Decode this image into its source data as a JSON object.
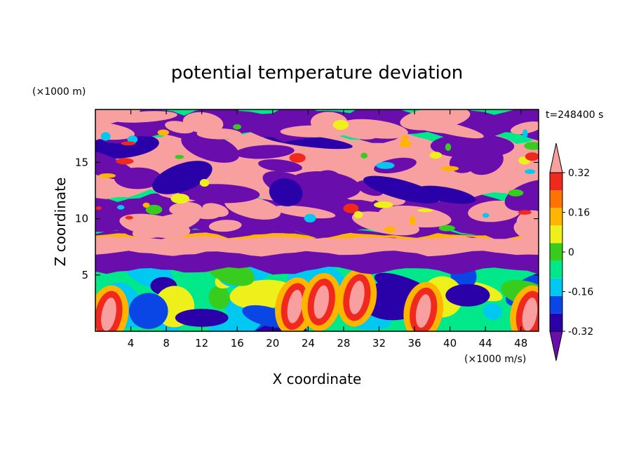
{
  "chart_data": {
    "type": "heatmap",
    "title": "potential temperature deviation",
    "xlabel": "X coordinate",
    "ylabel": "Z coordinate",
    "x_unit": "(×1000 m/s)",
    "y_unit": "(×1000 m)",
    "time_label": "t=248400 s",
    "xlim": [
      0,
      50
    ],
    "ylim": [
      0,
      19.7
    ],
    "x_ticks": [
      4,
      8,
      12,
      16,
      20,
      24,
      28,
      32,
      36,
      40,
      44,
      48
    ],
    "y_ticks": [
      5,
      10,
      15
    ],
    "colorbar": {
      "tick_labels": [
        "0.32",
        "0.16",
        "0",
        "-0.16",
        "-0.32"
      ],
      "tick_values": [
        0.32,
        0.16,
        0,
        -0.16,
        -0.32
      ],
      "levels": [
        -0.4,
        -0.32,
        -0.24,
        -0.16,
        -0.08,
        0,
        0.08,
        0.16,
        0.24,
        0.32,
        0.4
      ],
      "colors": [
        "#6a0dad",
        "#2a00a8",
        "#0a46e6",
        "#00c8f0",
        "#00e88a",
        "#38cc1e",
        "#eef01c",
        "#ffb400",
        "#ff7300",
        "#f0281e",
        "#f8a0a0"
      ],
      "extend": "both"
    },
    "bands": [
      {
        "z_range": [
          17.2,
          19.7
        ],
        "dominant": "mixed pink/purple",
        "colors": [
          "#f8a0a0",
          "#6a0dad"
        ]
      },
      {
        "z_range": [
          12.0,
          17.2
        ],
        "dominant": "pink over purple",
        "colors": [
          "#f8a0a0",
          "#6a0dad"
        ]
      },
      {
        "z_range": [
          8.5,
          12.0
        ],
        "dominant": "purple",
        "colors": [
          "#6a0dad",
          "#f8a0a0"
        ]
      },
      {
        "z_range": [
          6.8,
          8.5
        ],
        "dominant": "pink",
        "colors": [
          "#f8a0a0"
        ]
      },
      {
        "z_range": [
          0,
          6.8
        ],
        "dominant": "mixed green/cyan/blue with warm plumes",
        "colors": [
          "#00e88a",
          "#00c8f0",
          "#0a46e6",
          "#f0281e"
        ]
      }
    ]
  }
}
